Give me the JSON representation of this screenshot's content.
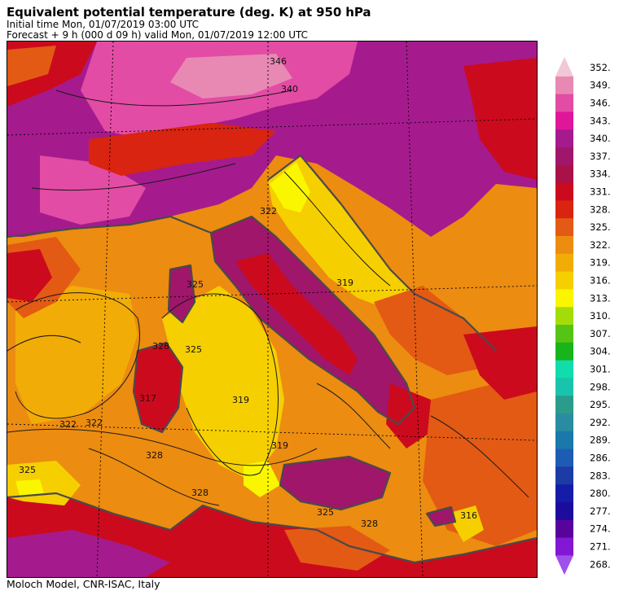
{
  "header": {
    "title": "Equivalent potential temperature (deg. K) at 950 hPa",
    "initial_time": "Initial time  Mon, 01/07/2019  03:00 UTC",
    "forecast": "Forecast +   9 h  (000 d 09 h)  valid Mon, 01/07/2019 12:00 UTC"
  },
  "footer": {
    "credit": "Moloch Model, CNR-ISAC, Italy"
  },
  "chart_data": {
    "type": "heatmap",
    "title": "Equivalent potential temperature (deg. K) at 950 hPa",
    "colorbar": {
      "ticks": [
        "352.",
        "349.",
        "346.",
        "343.",
        "340.",
        "337.",
        "334.",
        "331.",
        "328.",
        "325.",
        "322.",
        "319.",
        "316.",
        "313.",
        "310.",
        "307.",
        "304.",
        "301.",
        "298.",
        "295.",
        "292.",
        "289.",
        "286.",
        "283.",
        "280.",
        "277.",
        "274.",
        "271.",
        "268."
      ],
      "levels": [
        352,
        349,
        346,
        343,
        340,
        337,
        334,
        331,
        328,
        325,
        322,
        319,
        316,
        313,
        310,
        307,
        304,
        301,
        298,
        295,
        292,
        289,
        286,
        283,
        280,
        277,
        274,
        271,
        268
      ],
      "colors": [
        "#f0c8d8",
        "#e889b4",
        "#e34ca4",
        "#e0169a",
        "#a51b8d",
        "#a0166a",
        "#a81248",
        "#cc0a1e",
        "#d82410",
        "#e35a14",
        "#ec8c10",
        "#f2ac08",
        "#f6cf00",
        "#f9f600",
        "#a4dc0a",
        "#55c414",
        "#17b41b",
        "#11dcac",
        "#18c4ac",
        "#2b9c8c",
        "#2a8ca0",
        "#1a78aa",
        "#1e5cb4",
        "#1a3ca4",
        "#141ca8",
        "#1c0c9c",
        "#58049c",
        "#8218d4",
        "#a050ec"
      ],
      "extend": "both"
    },
    "contour_labels": [
      "346",
      "340",
      "322",
      "319",
      "325",
      "328",
      "317",
      "325",
      "322",
      "322",
      "319",
      "325",
      "328",
      "328",
      "319",
      "328",
      "325",
      "316"
    ],
    "region": "Central Mediterranean / Italy",
    "grid": true
  },
  "colors": {
    "coastline": "#4a4a4a",
    "contour": "#1a1a1a"
  }
}
